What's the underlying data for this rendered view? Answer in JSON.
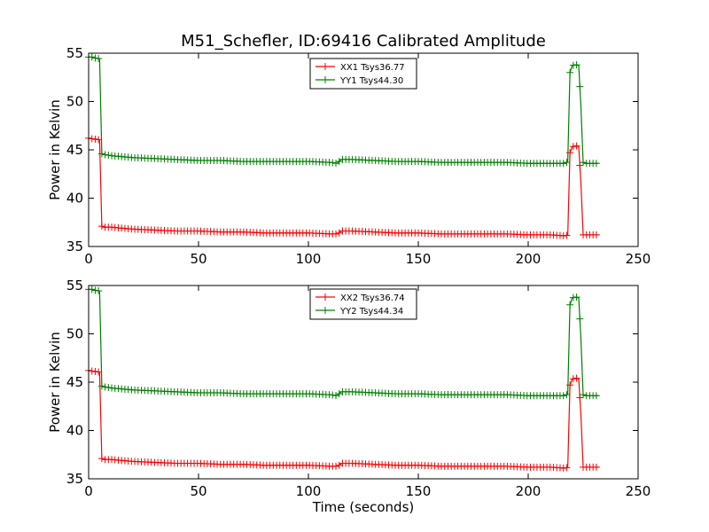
{
  "chart_data": [
    {
      "type": "line",
      "title": "M51_Schefler, ID:69416 Calibrated Amplitude",
      "xlabel": "",
      "ylabel": "Power in Kelvin",
      "xlim": [
        0,
        250
      ],
      "ylim": [
        35,
        55
      ],
      "xticks": [
        "0",
        "50",
        "100",
        "150",
        "200",
        "250"
      ],
      "yticks": [
        "35",
        "40",
        "45",
        "50",
        "55"
      ],
      "legend_position": "top-center",
      "grid": false,
      "series": [
        {
          "name": "XX1 Tsys36.77",
          "color": "#ff0000",
          "x": [
            0,
            1,
            2,
            3,
            4,
            5,
            6,
            7,
            8,
            10,
            15,
            20,
            30,
            40,
            50,
            60,
            70,
            80,
            90,
            100,
            110,
            113,
            114,
            115,
            117,
            120,
            130,
            140,
            150,
            160,
            170,
            180,
            190,
            200,
            210,
            217,
            218,
            219,
            220,
            221,
            222,
            223,
            224,
            225,
            226,
            228,
            230,
            232
          ],
          "y": [
            46.2,
            46.2,
            46.1,
            46.1,
            46.1,
            46.0,
            37.1,
            37.0,
            37.0,
            37.0,
            36.9,
            36.8,
            36.7,
            36.6,
            36.6,
            36.5,
            36.5,
            36.4,
            36.4,
            36.4,
            36.3,
            36.3,
            36.4,
            36.6,
            36.6,
            36.6,
            36.5,
            36.4,
            36.4,
            36.3,
            36.3,
            36.3,
            36.3,
            36.2,
            36.2,
            36.1,
            36.2,
            44.7,
            45.3,
            45.4,
            45.4,
            45.3,
            41.5,
            36.2,
            36.2,
            36.2,
            36.2,
            36.2
          ]
        },
        {
          "name": "YY1 Tsys44.30",
          "color": "#008000",
          "x": [
            0,
            1,
            2,
            3,
            4,
            5,
            6,
            7,
            8,
            10,
            15,
            20,
            30,
            40,
            50,
            60,
            70,
            80,
            90,
            100,
            110,
            113,
            114,
            115,
            117,
            120,
            130,
            140,
            150,
            160,
            170,
            180,
            190,
            200,
            210,
            217,
            218,
            219,
            220,
            221,
            222,
            223,
            224,
            225,
            226,
            228,
            230,
            232
          ],
          "y": [
            54.6,
            54.6,
            54.6,
            54.5,
            54.5,
            54.4,
            44.6,
            44.5,
            44.5,
            44.4,
            44.3,
            44.2,
            44.1,
            44.0,
            43.9,
            43.9,
            43.8,
            43.8,
            43.8,
            43.8,
            43.7,
            43.6,
            43.8,
            44.0,
            44.0,
            44.0,
            43.9,
            43.8,
            43.8,
            43.7,
            43.7,
            43.7,
            43.7,
            43.6,
            43.6,
            43.6,
            43.8,
            53.0,
            53.7,
            53.8,
            53.8,
            53.7,
            49.4,
            43.7,
            43.6,
            43.6,
            43.6,
            43.6
          ]
        }
      ]
    },
    {
      "type": "line",
      "title": "",
      "xlabel": "Time (seconds)",
      "ylabel": "Power in Kelvin",
      "xlim": [
        0,
        250
      ],
      "ylim": [
        35,
        55
      ],
      "xticks": [
        "0",
        "50",
        "100",
        "150",
        "200",
        "250"
      ],
      "yticks": [
        "35",
        "40",
        "45",
        "50",
        "55"
      ],
      "legend_position": "top-center",
      "grid": false,
      "series": [
        {
          "name": "XX2 Tsys36.74",
          "color": "#ff0000",
          "x": [
            0,
            1,
            2,
            3,
            4,
            5,
            6,
            7,
            8,
            10,
            15,
            20,
            30,
            40,
            50,
            60,
            70,
            80,
            90,
            100,
            110,
            113,
            114,
            115,
            117,
            120,
            130,
            140,
            150,
            160,
            170,
            180,
            190,
            200,
            210,
            217,
            218,
            219,
            220,
            221,
            222,
            223,
            224,
            225,
            226,
            228,
            230,
            232
          ],
          "y": [
            46.2,
            46.2,
            46.1,
            46.1,
            46.1,
            46.0,
            37.1,
            37.0,
            37.0,
            37.0,
            36.9,
            36.8,
            36.7,
            36.6,
            36.6,
            36.5,
            36.5,
            36.4,
            36.4,
            36.4,
            36.3,
            36.3,
            36.4,
            36.6,
            36.6,
            36.6,
            36.5,
            36.4,
            36.4,
            36.3,
            36.3,
            36.3,
            36.3,
            36.2,
            36.2,
            36.1,
            36.2,
            44.7,
            45.3,
            45.4,
            45.4,
            45.3,
            41.5,
            36.2,
            36.2,
            36.2,
            36.2,
            36.2
          ]
        },
        {
          "name": "YY2 Tsys44.34",
          "color": "#008000",
          "x": [
            0,
            1,
            2,
            3,
            4,
            5,
            6,
            7,
            8,
            10,
            15,
            20,
            30,
            40,
            50,
            60,
            70,
            80,
            90,
            100,
            110,
            113,
            114,
            115,
            117,
            120,
            130,
            140,
            150,
            160,
            170,
            180,
            190,
            200,
            210,
            217,
            218,
            219,
            220,
            221,
            222,
            223,
            224,
            225,
            226,
            228,
            230,
            232
          ],
          "y": [
            54.6,
            54.6,
            54.6,
            54.5,
            54.5,
            54.4,
            44.6,
            44.5,
            44.5,
            44.4,
            44.3,
            44.2,
            44.1,
            44.0,
            43.9,
            43.9,
            43.8,
            43.8,
            43.8,
            43.8,
            43.7,
            43.6,
            43.8,
            44.0,
            44.0,
            44.0,
            43.9,
            43.8,
            43.8,
            43.7,
            43.7,
            43.7,
            43.7,
            43.6,
            43.6,
            43.6,
            43.8,
            53.0,
            53.7,
            53.8,
            53.8,
            53.7,
            49.4,
            43.7,
            43.6,
            43.6,
            43.6,
            43.6
          ]
        }
      ]
    }
  ]
}
